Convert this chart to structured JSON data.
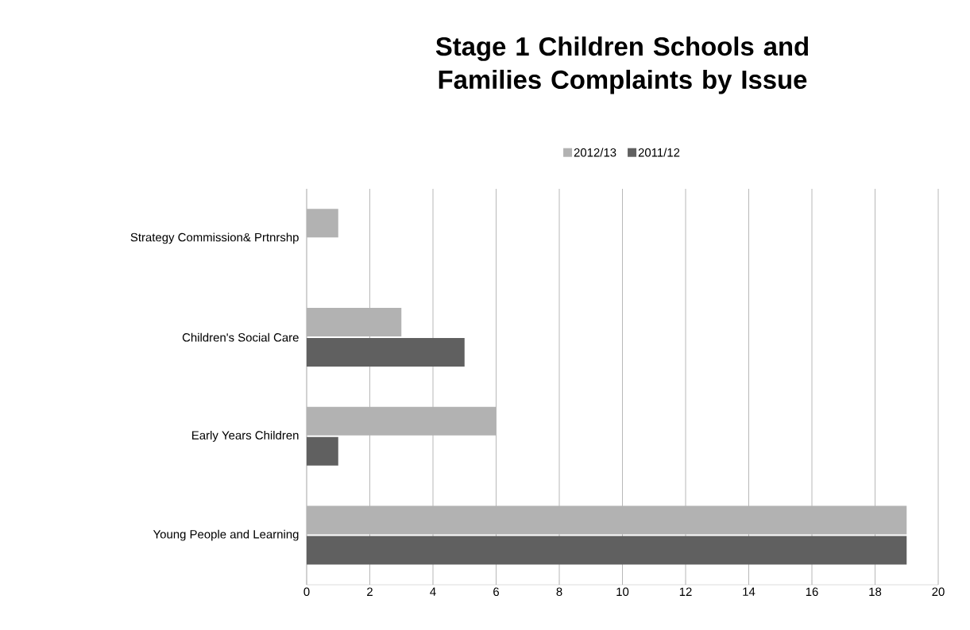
{
  "chart_data": {
    "type": "bar",
    "orientation": "horizontal",
    "title": "Stage 1 Children Schools and Families Complaints by Issue",
    "categories": [
      "Strategy Commission& Prtnrshp",
      "Children's Social Care",
      "Early Years Children",
      "Young People and Learning"
    ],
    "series": [
      {
        "name": "2012/13",
        "color": "#b2b2b2",
        "values": [
          1,
          3,
          6,
          19
        ]
      },
      {
        "name": "2011/12",
        "color": "#606060",
        "values": [
          null,
          5,
          1,
          19
        ]
      }
    ],
    "xlim": [
      0,
      20
    ],
    "xticks": [
      0,
      2,
      4,
      6,
      8,
      10,
      12,
      14,
      16,
      18,
      20
    ],
    "grid": "x",
    "legend": "top"
  }
}
